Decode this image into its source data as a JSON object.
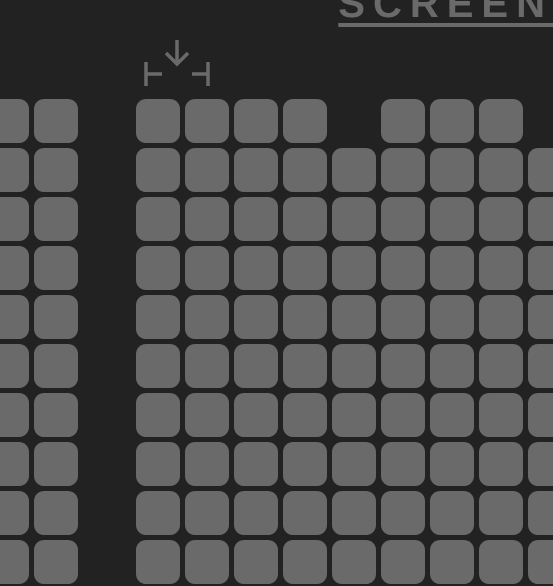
{
  "colors": {
    "background": "#222222",
    "seat_available": "#6a6a6a",
    "text_muted": "#6a6a6a"
  },
  "header": {
    "title_partial": "SCREEN"
  },
  "seat_style": {
    "width": 44,
    "height": 44,
    "gap": 5,
    "border_radius": 10
  },
  "aisle_gap": 52,
  "layout": {
    "left_block": {
      "cols": 2,
      "rows": 10,
      "missing": []
    },
    "right_block": {
      "cols": 9,
      "rows_def": [
        {
          "row": 0,
          "present": [
            0,
            1,
            2,
            3,
            5,
            6,
            7
          ]
        },
        {
          "row": 1,
          "present": [
            0,
            1,
            2,
            3,
            4,
            5,
            6,
            7,
            8
          ]
        },
        {
          "row": 2,
          "present": [
            0,
            1,
            2,
            3,
            4,
            5,
            6,
            7,
            8
          ]
        },
        {
          "row": 3,
          "present": [
            0,
            1,
            2,
            3,
            4,
            5,
            6,
            7,
            8
          ]
        },
        {
          "row": 4,
          "present": [
            0,
            1,
            2,
            3,
            4,
            5,
            6,
            7,
            8
          ]
        },
        {
          "row": 5,
          "present": [
            0,
            1,
            2,
            3,
            4,
            5,
            6,
            7,
            8
          ]
        },
        {
          "row": 6,
          "present": [
            0,
            1,
            2,
            3,
            4,
            5,
            6,
            7,
            8
          ]
        },
        {
          "row": 7,
          "present": [
            0,
            1,
            2,
            3,
            4,
            5,
            6,
            7,
            8
          ]
        },
        {
          "row": 8,
          "present": [
            0,
            1,
            2,
            3,
            4,
            5,
            6,
            7,
            8
          ]
        },
        {
          "row": 9,
          "present": [
            0,
            1,
            2,
            3,
            4,
            5,
            6,
            7,
            8
          ]
        }
      ]
    }
  }
}
